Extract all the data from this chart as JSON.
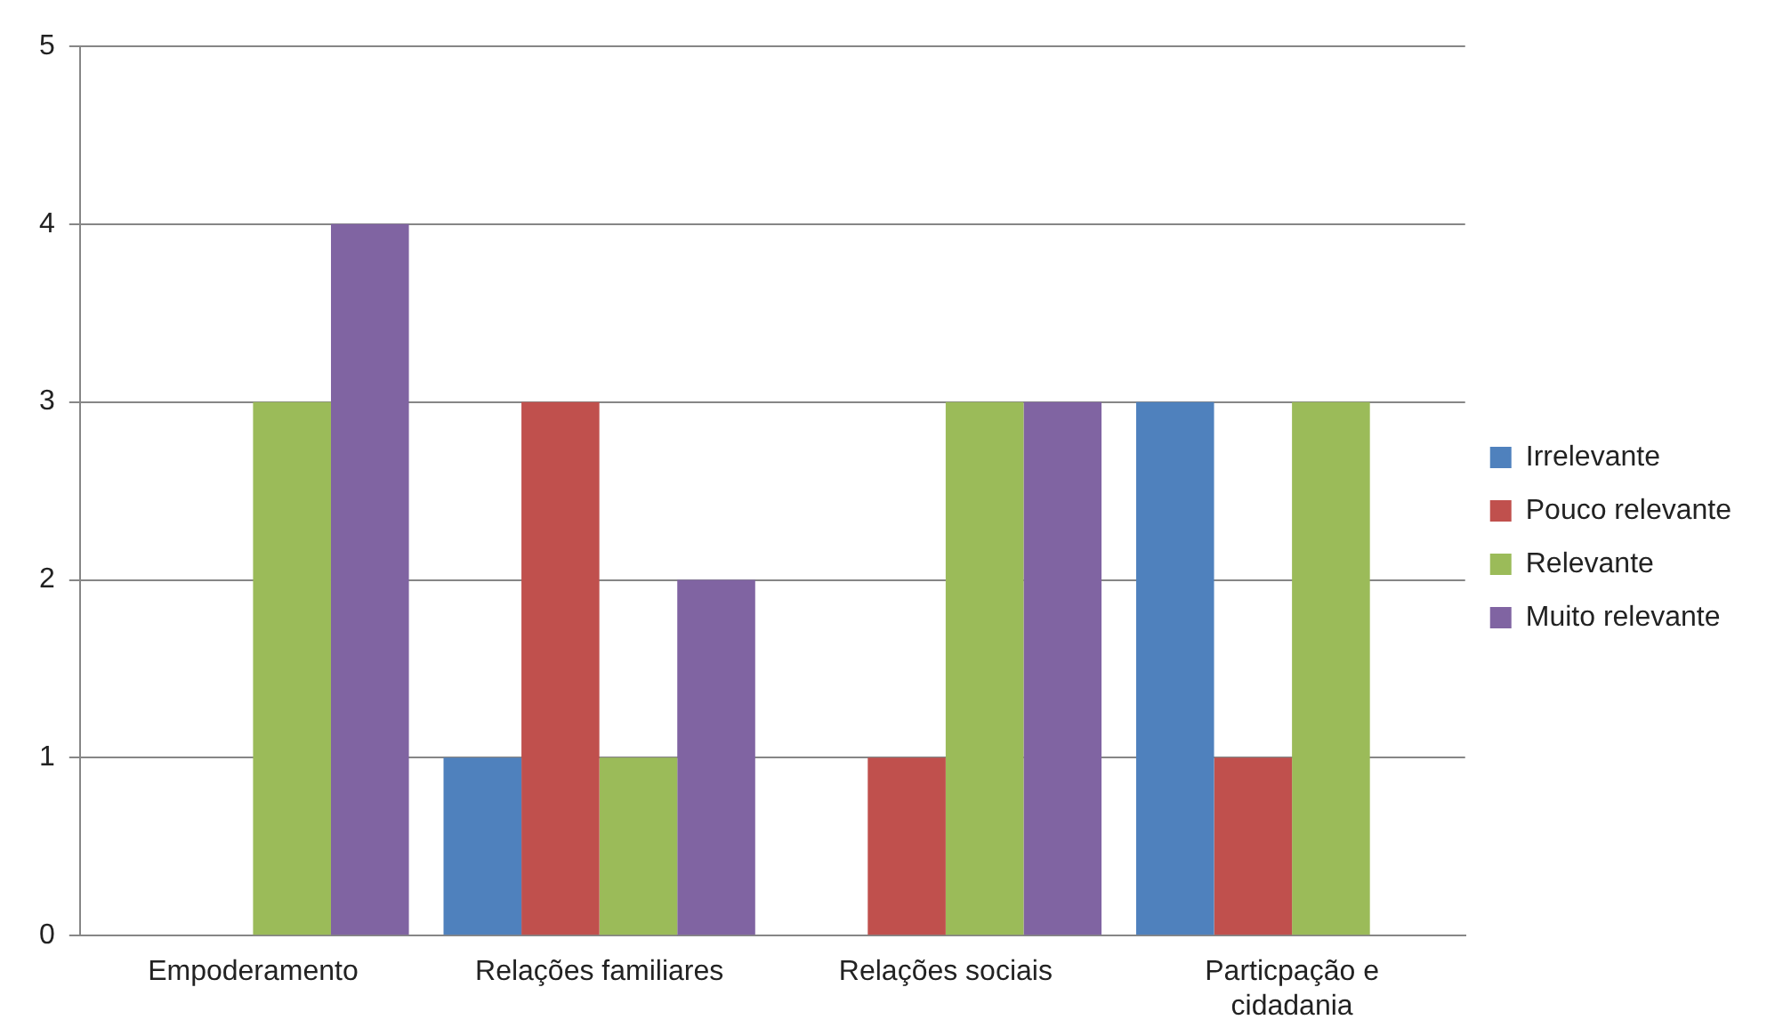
{
  "chart_data": {
    "type": "bar",
    "categories": [
      "Empoderamento",
      "Relações familiares",
      "Relações sociais",
      "Particpação e cidadania"
    ],
    "series": [
      {
        "name": "Irrelevante",
        "color": "#4f81bd",
        "values": [
          0,
          1,
          0,
          3
        ]
      },
      {
        "name": "Pouco relevante",
        "color": "#c0504d",
        "values": [
          0,
          3,
          1,
          1
        ]
      },
      {
        "name": "Relevante",
        "color": "#9bbb59",
        "values": [
          3,
          1,
          3,
          3
        ]
      },
      {
        "name": "Muito relevante",
        "color": "#8064a2",
        "values": [
          4,
          2,
          3,
          0
        ]
      }
    ],
    "ylim": [
      0,
      5
    ],
    "yticks": [
      0,
      1,
      2,
      3,
      4,
      5
    ],
    "grid": "y",
    "legend": "right"
  }
}
